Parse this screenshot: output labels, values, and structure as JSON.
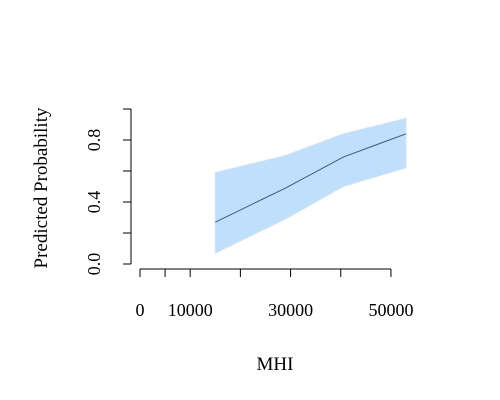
{
  "chart_data": {
    "type": "line",
    "title": "",
    "xlabel": "MHI",
    "ylabel": "Predicted Probability",
    "xlim": [
      0,
      53000
    ],
    "ylim": [
      0,
      1
    ],
    "x_ticks": [
      0,
      5000,
      10000,
      20000,
      30000,
      40000,
      50000
    ],
    "x_tick_labels": [
      "0",
      "",
      "10000",
      "",
      "30000",
      "",
      "50000"
    ],
    "y_ticks": [
      0,
      0.2,
      0.4,
      0.6,
      0.8,
      1.0
    ],
    "y_tick_labels": [
      "0.0",
      "",
      "0.4",
      "",
      "0.8",
      ""
    ],
    "grid": false,
    "series": [
      {
        "type": "line",
        "x": [
          15000,
          29000,
          40500,
          53000
        ],
        "y": [
          0.27,
          0.49,
          0.69,
          0.84
        ],
        "lower": [
          0.07,
          0.29,
          0.5,
          0.62
        ],
        "upper": [
          0.59,
          0.7,
          0.84,
          0.94
        ]
      }
    ],
    "colors": {
      "band_fill": "#bfdffa",
      "band_edge": "#d6e4f0",
      "line": "#3b5b73",
      "axis": "#000000"
    }
  }
}
